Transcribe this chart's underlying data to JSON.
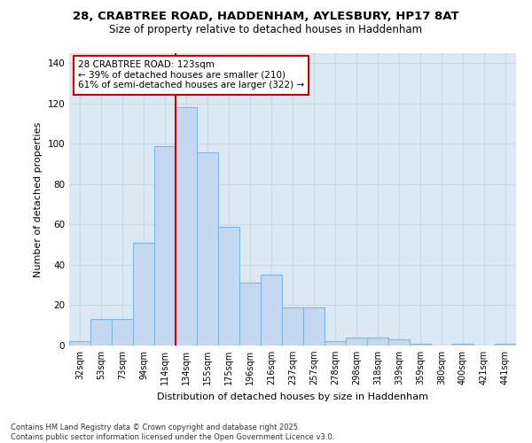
{
  "title_line1": "28, CRABTREE ROAD, HADDENHAM, AYLESBURY, HP17 8AT",
  "title_line2": "Size of property relative to detached houses in Haddenham",
  "xlabel": "Distribution of detached houses by size in Haddenham",
  "ylabel": "Number of detached properties",
  "categories": [
    "32sqm",
    "53sqm",
    "73sqm",
    "94sqm",
    "114sqm",
    "134sqm",
    "155sqm",
    "175sqm",
    "196sqm",
    "216sqm",
    "237sqm",
    "257sqm",
    "278sqm",
    "298sqm",
    "318sqm",
    "339sqm",
    "359sqm",
    "380sqm",
    "400sqm",
    "421sqm",
    "441sqm"
  ],
  "values": [
    2,
    13,
    13,
    51,
    99,
    118,
    96,
    59,
    31,
    35,
    19,
    19,
    2,
    4,
    4,
    3,
    1,
    0,
    1,
    0,
    1
  ],
  "bar_color": "#c5d8f0",
  "bar_edge_color": "#7db4e0",
  "vline_color": "#cc0000",
  "annotation_text": "28 CRABTREE ROAD: 123sqm\n← 39% of detached houses are smaller (210)\n61% of semi-detached houses are larger (322) →",
  "annotation_box_color": "#ffffff",
  "annotation_box_edge": "#cc0000",
  "ylim": [
    0,
    145
  ],
  "yticks": [
    0,
    20,
    40,
    60,
    80,
    100,
    120,
    140
  ],
  "grid_color": "#c8d8ea",
  "bg_color": "#dce9f5",
  "footnote": "Contains HM Land Registry data © Crown copyright and database right 2025.\nContains public sector information licensed under the Open Government Licence v3.0."
}
